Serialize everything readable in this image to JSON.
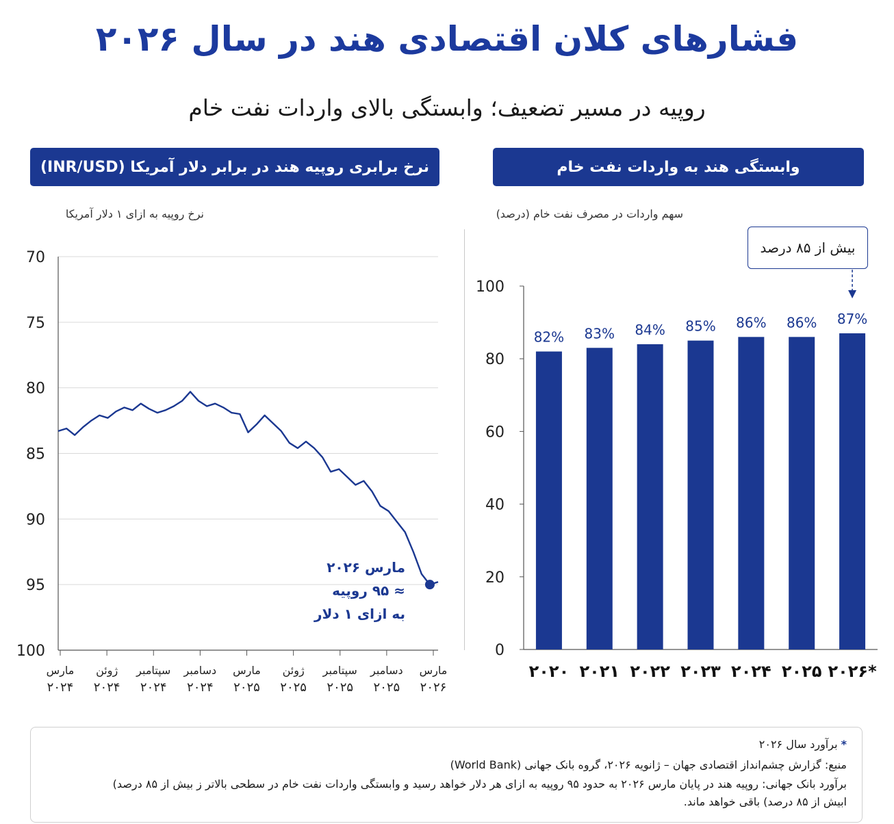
{
  "title": "فشارهای کلان اقتصادی هند در سال ۲۰۲۶",
  "subtitle": "روپیه در مسیر تضعیف؛ وابستگی بالای واردات نفت خام",
  "left_panel": {
    "header": "نرخ برابری روپیه هند در برابر دلار آمریکا (INR/USD)",
    "unit_label": "نرخ روپیه به ازای ۱ دلار آمریکا",
    "annotation": [
      "مارس ۲۰۲۶",
      "≈ ۹۵ روپیه",
      "به ازای ۱ دلار"
    ]
  },
  "right_panel": {
    "header": "وابستگی هند به واردات نفت خام",
    "unit_label": "سهم واردات در مصرف نفت خام (درصد)",
    "callout": "بیش از ۸۵ درصد"
  },
  "footnote": {
    "star": "*",
    "estimate": "برآورد سال ۲۰۲۶",
    "source": "منبع: گزارش چشم‌انداز اقتصادی جهان – ژانویه ۲۰۲۶، گروه بانک جهانی (World Bank)",
    "note_line1": "برآورد بانک جهانی: روپیه هند در پایان مارس ۲۰۲۶ به حدود ۹۵ روپیه به ازای هر دلار خواهد رسید و وابستگی واردات نفت خام در سطحی بالاتر ز بیش از ۸۵ درصد)",
    "note_line2": "ابیش از ۸۵ درصد) باقی خواهد ماند."
  },
  "colors": {
    "primary": "#1b3891",
    "title": "#1c3a9e",
    "grid": "#d9d9d9"
  },
  "chart_data": [
    {
      "type": "line",
      "ylim": [
        100,
        70
      ],
      "y_inverted": true,
      "yticks": [
        "70",
        "75",
        "80",
        "85",
        "90",
        "95",
        "100"
      ],
      "xticks": [
        {
          "month": "مارس",
          "year": "۲۰۲۴"
        },
        {
          "month": "ژوئن",
          "year": "۲۰۲۴"
        },
        {
          "month": "سپتامبر",
          "year": "۲۰۲۴"
        },
        {
          "month": "دسامبر",
          "year": "۲۰۲۴"
        },
        {
          "month": "مارس",
          "year": "۲۰۲۵"
        },
        {
          "month": "ژوئن",
          "year": "۲۰۲۵"
        },
        {
          "month": "سپتامبر",
          "year": "۲۰۲۵"
        },
        {
          "month": "دسامبر",
          "year": "۲۰۲۵"
        },
        {
          "month": "مارس",
          "year": "۲۰۲۶"
        }
      ],
      "values": [
        83.3,
        83.1,
        83.6,
        83.0,
        82.5,
        82.1,
        82.3,
        81.8,
        81.5,
        81.7,
        81.2,
        81.6,
        81.9,
        81.7,
        81.4,
        81.0,
        80.3,
        81.0,
        81.4,
        81.2,
        81.5,
        81.9,
        82.0,
        83.4,
        82.8,
        82.1,
        82.7,
        83.3,
        84.2,
        84.6,
        84.1,
        84.6,
        85.3,
        86.4,
        86.2,
        86.8,
        87.4,
        87.1,
        87.9,
        89.0,
        89.4,
        90.2,
        91.0,
        92.5,
        94.2,
        95.0,
        94.8
      ]
    },
    {
      "type": "bar",
      "categories": [
        "۲۰۲۰",
        "۲۰۲۱",
        "۲۰۲۲",
        "۲۰۲۳",
        "۲۰۲۴",
        "۲۰۲۵",
        "۲۰۲۶*"
      ],
      "values": [
        82,
        83,
        84,
        85,
        86,
        86,
        87
      ],
      "value_labels": [
        "82%",
        "83%",
        "84%",
        "85%",
        "86%",
        "86%",
        "87%"
      ],
      "ylim": [
        0,
        100
      ],
      "yticks": [
        "0",
        "20",
        "40",
        "60",
        "80",
        "100"
      ]
    }
  ]
}
